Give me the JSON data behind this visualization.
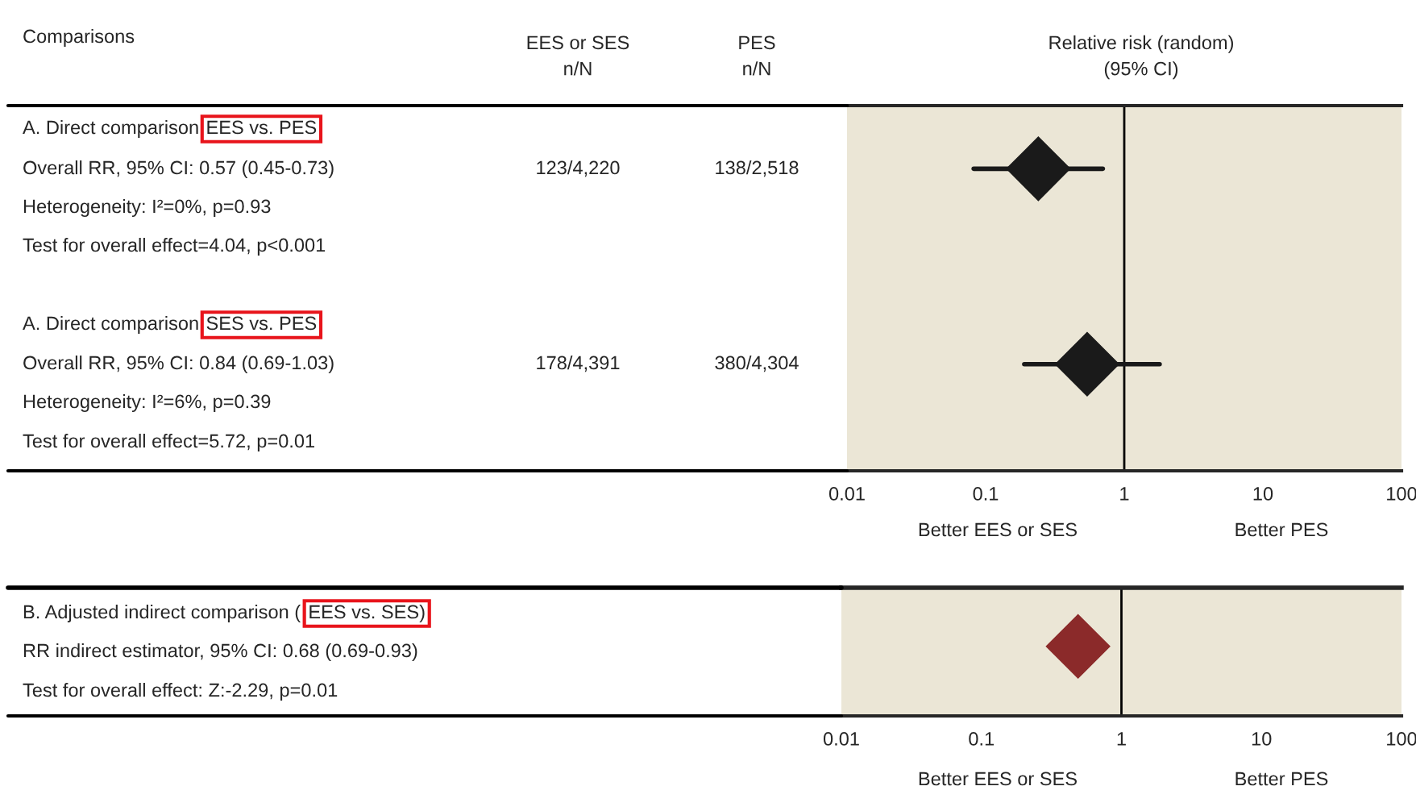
{
  "chart_data": [
    {
      "type": "scatter",
      "orientation": "horizontal",
      "log": "x",
      "marker": "diamond",
      "color": "#1a1a1a",
      "categories": [
        null,
        null
      ],
      "values": [
        0.24,
        0.54
      ],
      "errors": [
        [
          0.082,
          0.7
        ],
        [
          0.19,
          1.8
        ]
      ],
      "xlim": [
        0.01,
        100
      ],
      "xticks": [
        0.01,
        0.1,
        1,
        10,
        100
      ],
      "ref_lines": [
        {
          "axis": "x",
          "value": 1,
          "color": "#000000"
        }
      ],
      "annotations": [
        "Comparisons",
        "EES or SES\nn/N",
        "PES\nn/N",
        "Relative risk (random)\n(95% CI)",
        "A. Direct comparison",
        "EES vs. PES",
        "Overall RR, 95% CI: 0.57 (0.45-0.73)",
        "123/4,220",
        "138/2,518",
        "Heterogeneity: I²=0%, p=0.93",
        "Test for overall effect=4.04, p<0.001",
        "A. Direct comparison",
        "SES vs. PES",
        "Overall RR, 95% CI: 0.84 (0.69-1.03)",
        "178/4,391",
        "380/4,304",
        "Heterogeneity: I²=6%, p=0.39",
        "Test for overall effect=5.72, p=0.01",
        "Better EES or SES",
        "Better PES"
      ]
    },
    {
      "type": "scatter",
      "orientation": "horizontal",
      "log": "x",
      "marker": "diamond",
      "color": "#8b2a2a",
      "categories": [
        null
      ],
      "values": [
        0.49
      ],
      "xlim": [
        0.01,
        100
      ],
      "xticks": [
        0.01,
        0.1,
        1,
        10,
        100
      ],
      "ref_lines": [
        {
          "axis": "x",
          "value": 1,
          "color": "#000000"
        }
      ],
      "annotations": [
        "B. Adjusted indirect comparison (",
        "EES vs. SES)",
        "RR indirect estimator, 95% CI: 0.68 (0.69-0.93)",
        "Test for overall effect: Z:-2.29, p=0.01",
        "Better EES or SES",
        "Better PES"
      ]
    }
  ]
}
